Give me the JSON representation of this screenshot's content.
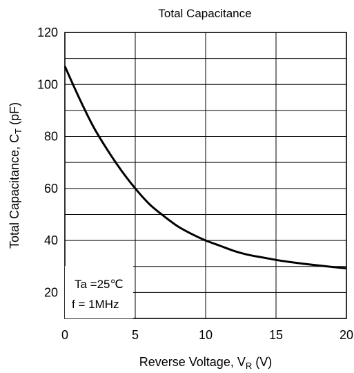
{
  "chart_data": {
    "type": "line",
    "title": "Total Capacitance",
    "xlabel": {
      "main": "Reverse Voltage, V",
      "sub": "R",
      "suffix": " (V)"
    },
    "ylabel": {
      "main": "Total Capacitance, C",
      "sub": "T",
      "suffix": " (pF)"
    },
    "xlim": [
      0,
      20
    ],
    "ylim": [
      10,
      120
    ],
    "x_ticks": [
      0,
      5,
      10,
      15,
      20
    ],
    "y_ticks": [
      20,
      40,
      60,
      80,
      100,
      120
    ],
    "x_tick_labels": [
      "0",
      "5",
      "10",
      "15",
      "20"
    ],
    "y_tick_labels": [
      "20",
      "40",
      "60",
      "80",
      "100",
      "120"
    ],
    "grid": true,
    "series": [
      {
        "color": "#000000",
        "x": [
          0,
          1,
          2,
          3,
          4,
          5,
          6,
          7,
          8,
          9,
          10,
          11,
          12,
          13,
          14,
          15,
          16,
          17,
          18,
          19,
          20
        ],
        "y": [
          107,
          95,
          84,
          75,
          67,
          60,
          54,
          49.5,
          45.5,
          42.5,
          40,
          38,
          36,
          34.5,
          33.5,
          32.5,
          31.7,
          31,
          30.4,
          29.8,
          29.3
        ]
      }
    ],
    "annotations": [
      "Ta =25℃",
      "f = 1MHz"
    ]
  }
}
